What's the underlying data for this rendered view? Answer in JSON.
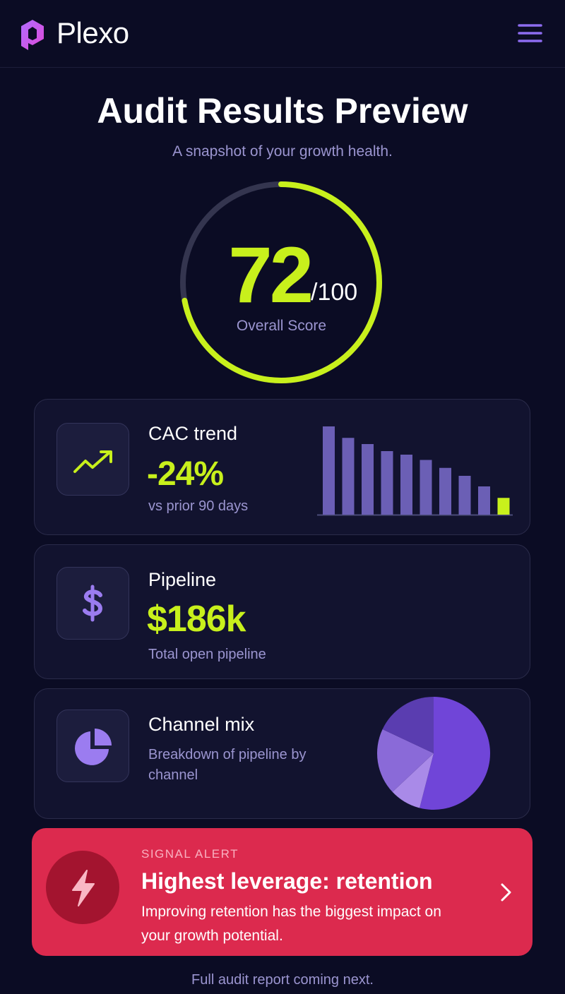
{
  "header": {
    "brand": "Plexo"
  },
  "hero": {
    "title": "Audit Results Preview",
    "subtitle": "A snapshot of your growth health.",
    "score": 72,
    "score_max": {
      "value": 100,
      "label": "/100"
    },
    "score_label": "Overall Score",
    "score_color": "#c8f01c"
  },
  "cards": [
    {
      "title": "CAC trend",
      "value": "-24%",
      "note": "vs prior 90 days",
      "chart": {
        "type": "bar",
        "values": [
          100,
          87,
          80,
          72,
          68,
          62,
          53,
          44,
          32,
          19
        ],
        "colors": [
          "#6b5fb5",
          "#6b5fb5",
          "#6b5fb5",
          "#6b5fb5",
          "#6b5fb5",
          "#6b5fb5",
          "#6b5fb5",
          "#6b5fb5",
          "#6b5fb5",
          "#c8f01c"
        ]
      }
    },
    {
      "title": "Pipeline",
      "value": "$186k",
      "note": "Total open pipeline"
    },
    {
      "title": "Channel mix",
      "note": "Breakdown of pipeline by channel",
      "chart": {
        "type": "pie",
        "values": [
          54,
          9,
          19,
          18
        ],
        "colors": [
          "#7045d8",
          "#a98ae8",
          "#8a6ad8",
          "#5a3db0"
        ]
      }
    }
  ],
  "alert": {
    "kicker": "SIGNAL ALERT",
    "title": "Highest leverage: retention",
    "text": "Improving retention has the biggest impact on your growth potential."
  },
  "footer": "Full audit report coming next."
}
